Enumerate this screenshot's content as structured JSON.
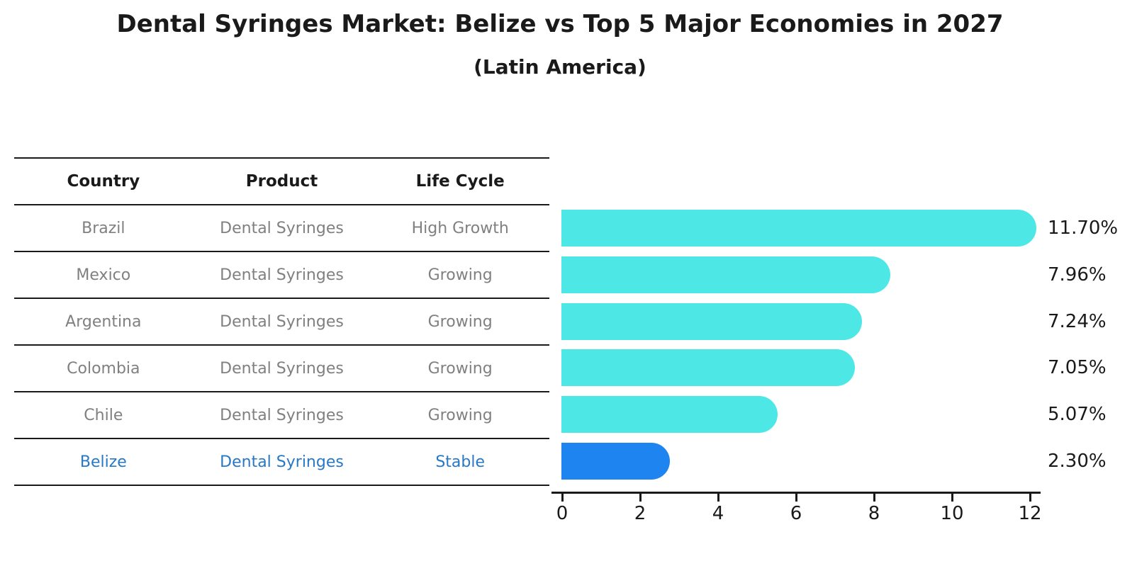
{
  "title": "Dental Syringes Market: Belize vs Top 5 Major Economies in 2027",
  "subtitle": "(Latin America)",
  "table": {
    "headers": [
      "Country",
      "Product",
      "Life Cycle"
    ],
    "rows": [
      {
        "country": "Brazil",
        "product": "Dental Syringes",
        "life_cycle": "High Growth",
        "highlight": false
      },
      {
        "country": "Mexico",
        "product": "Dental Syringes",
        "life_cycle": "Growing",
        "highlight": false
      },
      {
        "country": "Argentina",
        "product": "Dental Syringes",
        "life_cycle": "Growing",
        "highlight": false
      },
      {
        "country": "Colombia",
        "product": "Dental Syringes",
        "life_cycle": "Growing",
        "highlight": false
      },
      {
        "country": "Chile",
        "product": "Dental Syringes",
        "life_cycle": "Growing",
        "highlight": false
      },
      {
        "country": "Belize",
        "product": "Dental Syringes",
        "life_cycle": "Stable",
        "highlight": true
      }
    ]
  },
  "chart_data": {
    "type": "bar",
    "orientation": "horizontal",
    "title": "Dental Syringes Market: Belize vs Top 5 Major Economies in 2027",
    "subtitle": "(Latin America)",
    "categories": [
      "Brazil",
      "Mexico",
      "Argentina",
      "Colombia",
      "Chile",
      "Belize"
    ],
    "values": [
      11.7,
      7.96,
      7.24,
      7.05,
      5.07,
      2.3
    ],
    "value_labels": [
      "11.70%",
      "7.96%",
      "7.24%",
      "7.05%",
      "5.07%",
      "2.30%"
    ],
    "x_ticks": [
      0,
      2,
      4,
      6,
      8,
      10,
      12
    ],
    "xlim": [
      0,
      12.4
    ],
    "grid": false,
    "legend": false,
    "bar_color": "#4DE8E6",
    "highlight_color": "#1E84F0",
    "highlight_index": 5,
    "highlight_edge_style": "dotted",
    "value_label_color": "#1a1a1a",
    "axis_color": "#1a1a1a",
    "table_text_color": "#808080",
    "highlight_text_color": "#2878c8"
  }
}
